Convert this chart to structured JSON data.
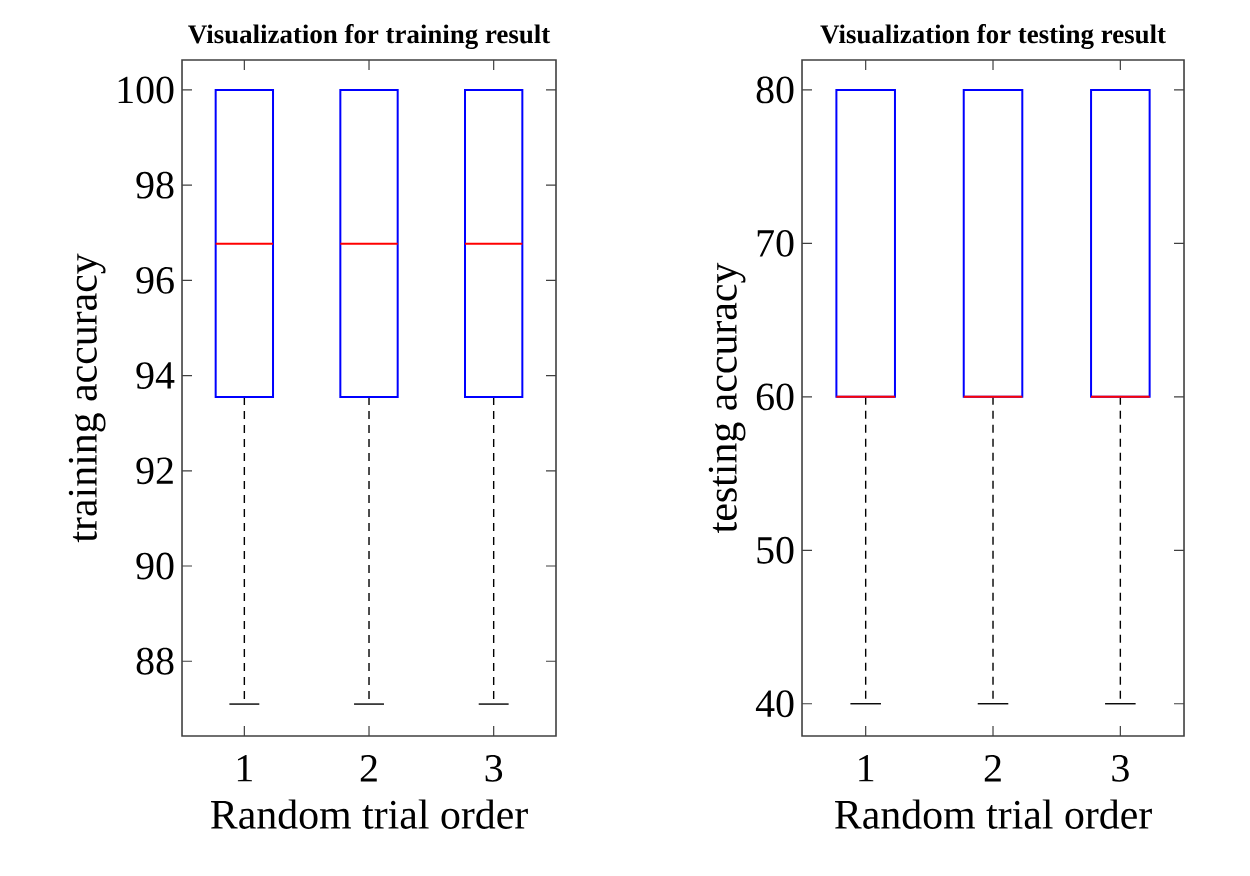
{
  "chart_data": [
    {
      "type": "box",
      "title": "Visualization for training result",
      "xlabel": "Random trial order",
      "ylabel": "training accuracy",
      "categories": [
        "1",
        "2",
        "3"
      ],
      "ylim": [
        86.43,
        100.63
      ],
      "yticks": [
        88,
        90,
        92,
        94,
        96,
        98,
        100
      ],
      "grid": false,
      "series": [
        {
          "color": "#0000ff",
          "boxes": [
            {
              "low": 87.1,
              "q1": 93.55,
              "median": 96.77,
              "q3": 100,
              "high": 100
            },
            {
              "low": 87.1,
              "q1": 93.55,
              "median": 96.77,
              "q3": 100,
              "high": 100
            },
            {
              "low": 87.1,
              "q1": 93.55,
              "median": 96.77,
              "q3": 100,
              "high": 100
            }
          ]
        }
      ]
    },
    {
      "type": "box",
      "title": "Visualization for testing result",
      "xlabel": "Random trial order",
      "ylabel": "testing accuracy",
      "categories": [
        "1",
        "2",
        "3"
      ],
      "ylim": [
        37.9,
        81.95
      ],
      "yticks": [
        40,
        50,
        60,
        70,
        80
      ],
      "grid": false,
      "series": [
        {
          "color": "#0000ff",
          "boxes": [
            {
              "low": 40,
              "q1": 60,
              "median": 60,
              "q3": 80,
              "high": 80
            },
            {
              "low": 40,
              "q1": 60,
              "median": 60,
              "q3": 80,
              "high": 80
            },
            {
              "low": 40,
              "q1": 60,
              "median": 60,
              "q3": 80,
              "high": 80
            }
          ]
        }
      ]
    }
  ]
}
